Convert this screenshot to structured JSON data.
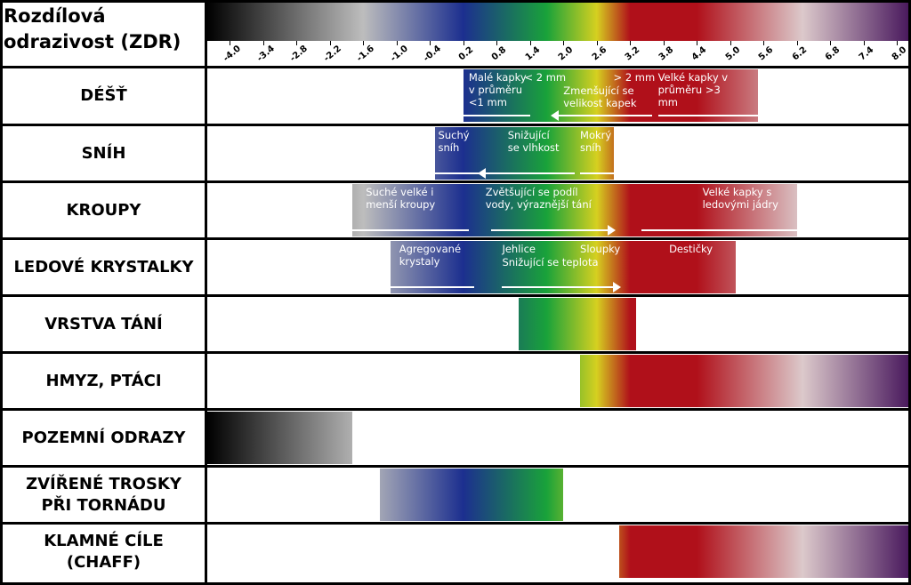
{
  "header": {
    "title": "Rozdílová\nodrazivost (ZDR)"
  },
  "scale": {
    "min": -4.4,
    "max": 8.2,
    "ticks": [
      "-4.0",
      "-3.4",
      "-2.8",
      "-2.2",
      "-1.6",
      "-1.0",
      "-0.4",
      "0.2",
      "0.8",
      "1.4",
      "2.0",
      "2.6",
      "3.2",
      "3.8",
      "4.4",
      "5.0",
      "5.6",
      "6.2",
      "6.8",
      "7.4",
      "8.0"
    ],
    "colors": {
      "black": "#000000",
      "grey": "#bdbdbd",
      "blue": "#1c2f8f",
      "green": "#19a23a",
      "yellow": "#d6d020",
      "red": "#b0101a",
      "pale": "#dcc9cb",
      "purple": "#4a1a5e"
    }
  },
  "rows": [
    {
      "label": "DÉŠŤ",
      "range": [
        0.2,
        5.5
      ],
      "notes": [
        {
          "text": "Malé kapky\nv průměru\n<1 mm",
          "x": 0.3
        },
        {
          "text": "< 2 mm",
          "x": 1.3
        },
        {
          "text": "> 2 mm",
          "x": 2.9
        },
        {
          "text": "Zmenšující se\nvelikost kapek",
          "x": 2.0,
          "line": 2
        },
        {
          "text": "Velké kapky v\nprůměru >3\nmm",
          "x": 3.7
        }
      ],
      "arrows": [
        {
          "from": 0.2,
          "to": 1.4,
          "dir": "none"
        },
        {
          "from": 1.8,
          "to": 3.6,
          "dir": "left"
        },
        {
          "from": 3.7,
          "to": 5.5,
          "dir": "none"
        }
      ]
    },
    {
      "label": "SNÍH",
      "range": [
        -0.3,
        2.9
      ],
      "notes": [
        {
          "text": "Suchý\nsníh",
          "x": -0.25
        },
        {
          "text": "Snižující\nse vlhkost",
          "x": 1.0
        },
        {
          "text": "Mokrý\nsníh",
          "x": 2.3
        }
      ],
      "arrows": [
        {
          "from": -0.3,
          "to": 0.5,
          "dir": "none"
        },
        {
          "from": 0.5,
          "to": 2.2,
          "dir": "left"
        },
        {
          "from": 2.3,
          "to": 2.9,
          "dir": "none"
        }
      ]
    },
    {
      "label": "KROUPY",
      "range": [
        -1.8,
        6.2
      ],
      "notes": [
        {
          "text": "Suché velké i\nmenší kroupy",
          "x": -1.55
        },
        {
          "text": "Zvětšující se podíl\nvody, výraznější tání",
          "x": 0.6
        },
        {
          "text": "Velké kapky s\nledovými jádry",
          "x": 4.5
        }
      ],
      "arrows": [
        {
          "from": -1.8,
          "to": 0.3,
          "dir": "none"
        },
        {
          "from": 0.7,
          "to": 2.9,
          "dir": "right"
        },
        {
          "from": 3.4,
          "to": 6.2,
          "dir": "none"
        }
      ]
    },
    {
      "label": "LEDOVÉ KRYSTALKY",
      "range": [
        -1.1,
        5.1
      ],
      "notes": [
        {
          "text": "Agregované\nkrystaly",
          "x": -0.95
        },
        {
          "text": "Jehlice",
          "x": 0.9
        },
        {
          "text": "Sloupky",
          "x": 2.3
        },
        {
          "text": "Destičky",
          "x": 3.9
        },
        {
          "text": "Snižující se teplota",
          "x": 0.9,
          "line": 2
        }
      ],
      "arrows": [
        {
          "from": -1.1,
          "to": 0.4,
          "dir": "none"
        },
        {
          "from": 0.9,
          "to": 3.0,
          "dir": "right"
        }
      ]
    },
    {
      "label": "VRSTVA TÁNÍ",
      "range": [
        1.2,
        3.3
      ],
      "notes": [],
      "arrows": []
    },
    {
      "label": "HMYZ, PTÁCI",
      "range": [
        2.3,
        8.2
      ],
      "notes": [],
      "arrows": []
    },
    {
      "label": "POZEMNÍ ODRAZY",
      "range": [
        -4.4,
        -1.8
      ],
      "notes": [],
      "arrows": []
    },
    {
      "label": "ZVÍŘENÉ TROSKY\nPŘI TORNÁDU",
      "range": [
        -1.3,
        2.0
      ],
      "notes": [],
      "arrows": []
    },
    {
      "label": "KLAMNÉ CÍLE\n(CHAFF)",
      "range": [
        3.0,
        8.2
      ],
      "notes": [],
      "arrows": []
    }
  ]
}
